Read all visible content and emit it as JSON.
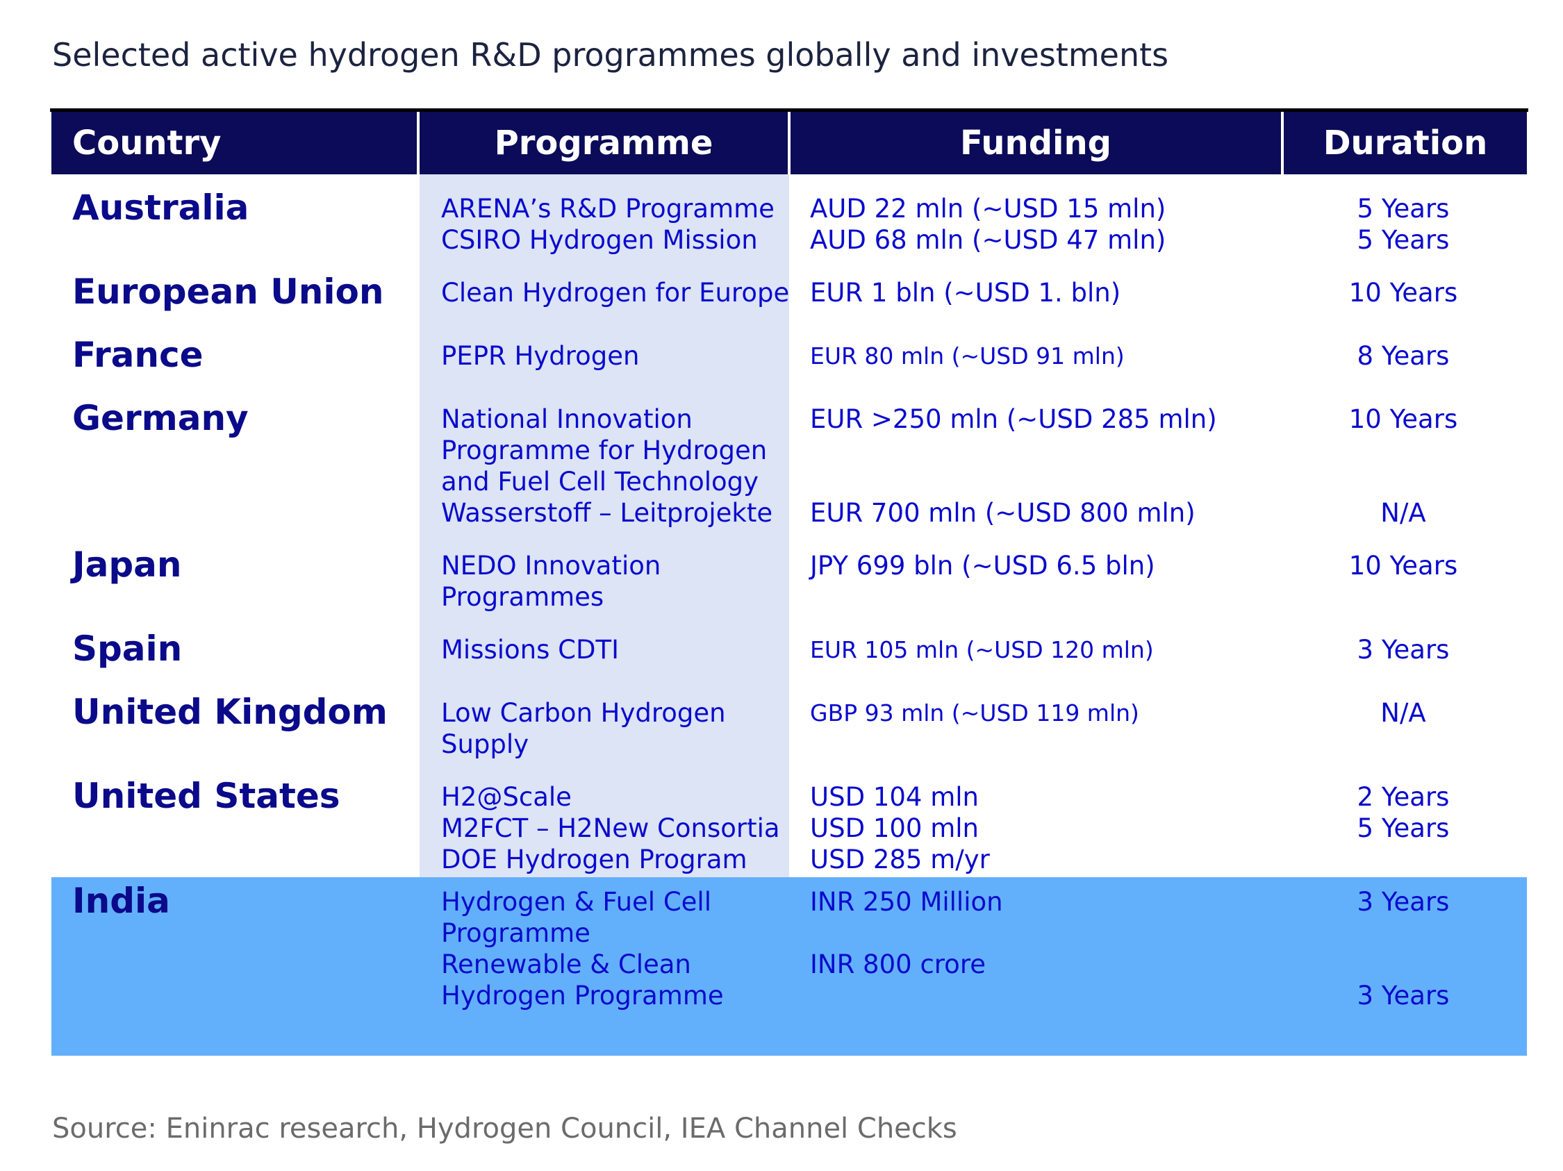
{
  "title": "Selected active hydrogen R&D programmes globally and investments",
  "headers": {
    "country": "Country",
    "programme": "Programme",
    "funding": "Funding",
    "duration": "Duration"
  },
  "rows": [
    {
      "country": "Australia",
      "programme": [
        "ARENA’s R&D Programme",
        "CSIRO Hydrogen Mission"
      ],
      "funding": [
        "AUD 22 mln (~USD 15 mln)",
        "AUD 68 mln (~USD 47 mln)"
      ],
      "duration": [
        "5 Years",
        "5 Years"
      ]
    },
    {
      "country": "European Union",
      "programme": [
        "Clean Hydrogen for Europe"
      ],
      "funding": [
        "EUR 1 bln (~USD 1. bln)"
      ],
      "duration": [
        "10 Years"
      ]
    },
    {
      "country": "France",
      "programme": [
        "PEPR Hydrogen"
      ],
      "funding": [
        "EUR 80 mln (~USD 91 mln)"
      ],
      "duration": [
        "8 Years"
      ]
    },
    {
      "country": "Germany",
      "programme": [
        "National Innovation",
        "Programme for Hydrogen",
        "and Fuel Cell Technology",
        "Wasserstoff – Leitprojekte"
      ],
      "funding": [
        "EUR >250 mln (~USD 285 mln)",
        "",
        "",
        "EUR 700 mln (~USD 800 mln)"
      ],
      "duration": [
        "10 Years",
        "",
        "",
        "N/A"
      ]
    },
    {
      "country": "Japan",
      "programme": [
        "NEDO Innovation",
        "Programmes"
      ],
      "funding": [
        "JPY 699 bln (~USD 6.5 bln)"
      ],
      "duration": [
        "10 Years"
      ]
    },
    {
      "country": "Spain",
      "programme": [
        "Missions CDTI"
      ],
      "funding": [
        "EUR 105 mln (~USD 120 mln)"
      ],
      "duration": [
        "3 Years"
      ]
    },
    {
      "country": "United Kingdom",
      "programme": [
        "Low Carbon Hydrogen",
        "Supply"
      ],
      "funding": [
        "GBP 93 mln (~USD 119 mln)"
      ],
      "duration": [
        "N/A"
      ]
    },
    {
      "country": "United States",
      "programme": [
        "H2@Scale",
        "M2FCT – H2New  Consortia",
        "DOE Hydrogen Program"
      ],
      "funding": [
        "USD 104 mln",
        "USD 100 mln",
        "USD 285 m/yr"
      ],
      "duration": [
        "2 Years",
        "5 Years"
      ]
    },
    {
      "country": "India",
      "programme": [
        "Hydrogen & Fuel Cell",
        "Programme",
        "Renewable & Clean",
        "Hydrogen Programme"
      ],
      "funding": [
        "INR 250 Million",
        "",
        "INR 800 crore"
      ],
      "duration": [
        "3 Years",
        "",
        "",
        "3 Years"
      ]
    }
  ],
  "source": "Source: Eninrac research, Hydrogen Council, IEA Channel Checks",
  "colors": {
    "header_bg": "#0b0b59",
    "programme_band": "#dce4f5",
    "india_highlight": "#62b0fb",
    "country_text": "#0a0a8a",
    "cell_text": "#0a0acd"
  }
}
